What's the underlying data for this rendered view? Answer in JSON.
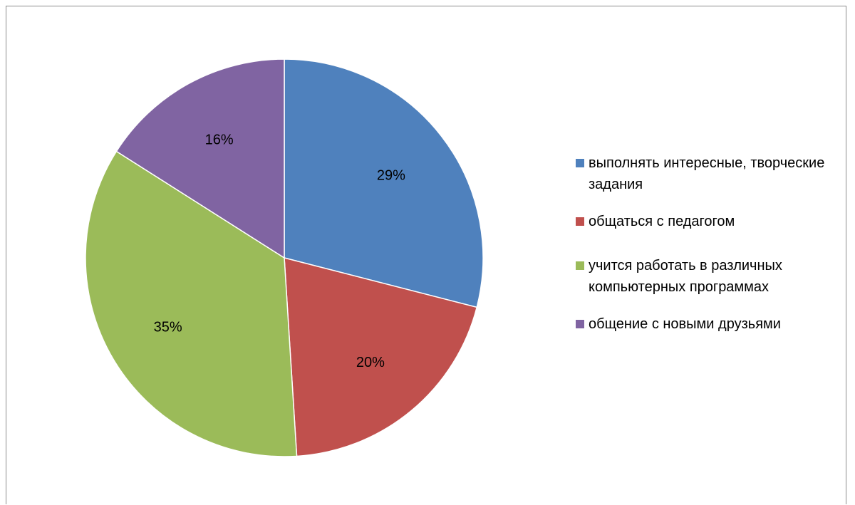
{
  "chart_data": {
    "type": "pie",
    "title": "",
    "categories": [
      "выполнять интересные, творческие задания",
      "общаться с педагогом",
      "учится работать в различных компьютерных программах",
      "общение с новыми друзьями"
    ],
    "values": [
      29,
      20,
      35,
      16
    ],
    "labels": [
      "29%",
      "20%",
      "35%",
      "16%"
    ],
    "colors": [
      "#4F81BD",
      "#C0504D",
      "#9BBB59",
      "#8064A2"
    ],
    "start_angle": "12 o'clock",
    "direction": "clockwise",
    "legend_position": "right"
  },
  "legend": [
    {
      "label": "выполнять интересные, творческие задания",
      "color": "#4F81BD"
    },
    {
      "label": "общаться с педагогом",
      "color": "#C0504D"
    },
    {
      "label": "учится работать в различных компьютерных программах",
      "color": "#9BBB59"
    },
    {
      "label": "общение с новыми друзьями",
      "color": "#8064A2"
    }
  ]
}
